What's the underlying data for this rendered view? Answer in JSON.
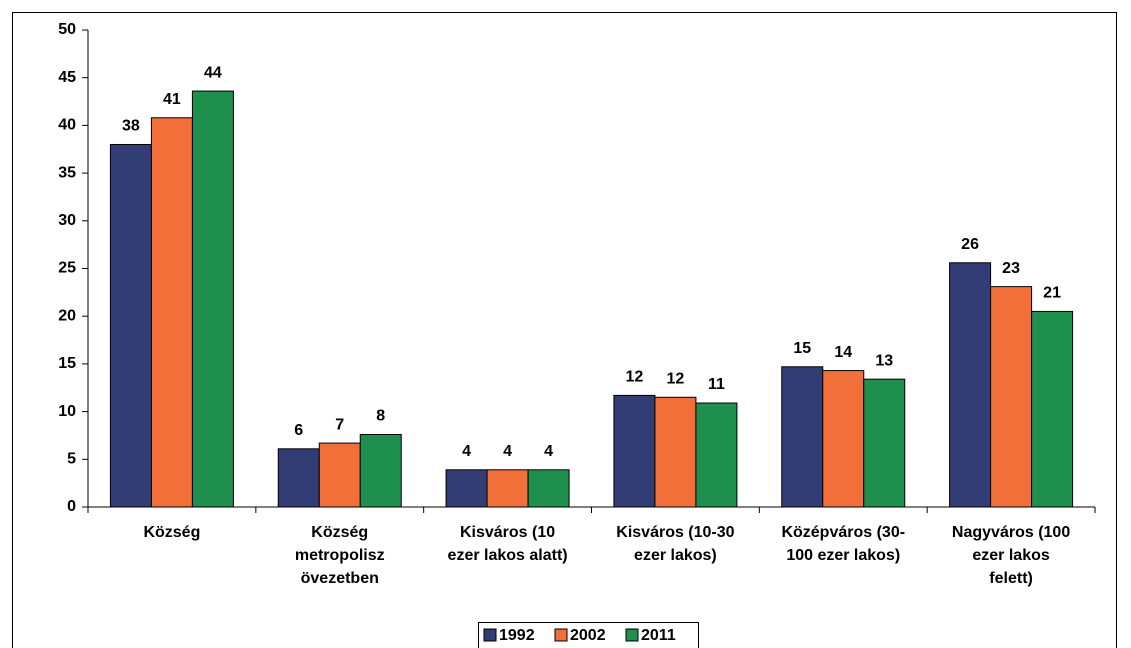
{
  "chart_data": {
    "type": "bar",
    "categories": [
      "Község",
      "Község\nmetropolisz\növezetben",
      "Kisváros (10\nezer lakos alatt)",
      "Kisváros (10-30\nezer lakos)",
      "Középváros (30-\n100 ezer lakos)",
      "Nagyváros (100\nezer lakos\nfelett)"
    ],
    "series": [
      {
        "name": "1992",
        "color": "#333d75",
        "values": [
          38.0,
          6.1,
          3.9,
          11.7,
          14.7,
          25.6
        ],
        "value_labels": [
          "38",
          "6",
          "4",
          "12",
          "15",
          "26"
        ]
      },
      {
        "name": "2002",
        "color": "#f26f3a",
        "values": [
          40.8,
          6.7,
          3.9,
          11.5,
          14.3,
          23.1
        ],
        "value_labels": [
          "41",
          "7",
          "4",
          "12",
          "14",
          "23"
        ]
      },
      {
        "name": "2011",
        "color": "#1f8f4d",
        "values": [
          43.6,
          7.6,
          3.9,
          10.9,
          13.4,
          20.5
        ],
        "value_labels": [
          "44",
          "8",
          "4",
          "11",
          "13",
          "21"
        ]
      }
    ],
    "ylim": [
      0,
      50
    ],
    "yticks": [
      0,
      5,
      10,
      15,
      20,
      25,
      30,
      35,
      40,
      45,
      50
    ],
    "grid": false,
    "legend": "bottom"
  }
}
